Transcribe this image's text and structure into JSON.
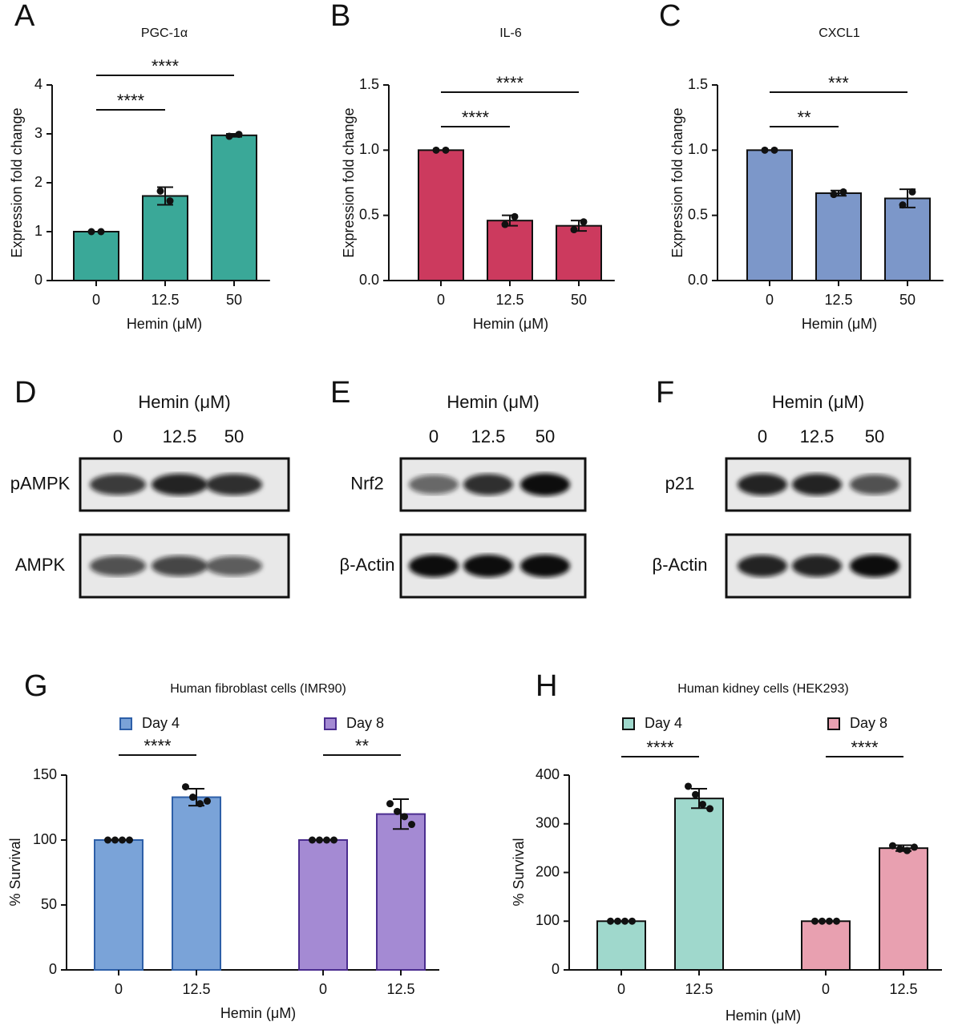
{
  "chart_data": [
    {
      "type": "bar",
      "panel": "A",
      "title": "PGC-1α",
      "ylabel": "Expression fold change",
      "xlabel": "Hemin (μM)",
      "categories": [
        "0",
        "12.5",
        "50"
      ],
      "values": [
        1,
        1.73,
        2.97
      ],
      "errors": [
        0,
        0.18,
        0.03
      ],
      "points": [
        [
          1,
          1
        ],
        [
          1.83,
          1.63
        ],
        [
          2.95,
          2.99
        ]
      ],
      "color": "#3aa898",
      "edgecolor": "#111111",
      "ylim": [
        0,
        4
      ],
      "yticks": [
        0,
        1,
        2,
        3,
        4
      ],
      "comparisons": [
        {
          "groups": [
            "0",
            "12.5"
          ],
          "label": "****"
        },
        {
          "groups": [
            "0",
            "50"
          ],
          "label": "****"
        }
      ]
    },
    {
      "type": "bar",
      "panel": "B",
      "title": "IL-6",
      "ylabel": "Expression fold change",
      "xlabel": "Hemin (μM)",
      "categories": [
        "0",
        "12.5",
        "50"
      ],
      "values": [
        1,
        0.46,
        0.42
      ],
      "errors": [
        0,
        0.04,
        0.04
      ],
      "points": [
        [
          1,
          1
        ],
        [
          0.43,
          0.49
        ],
        [
          0.39,
          0.45
        ]
      ],
      "color": "#cc3a5e",
      "edgecolor": "#111111",
      "ylim": [
        0,
        1.5
      ],
      "yticks": [
        {
          "value": 0,
          "label": "0.0"
        },
        0.5,
        {
          "value": 1,
          "label": "1.0"
        },
        1.5
      ],
      "comparisons": [
        {
          "groups": [
            "0",
            "12.5"
          ],
          "label": "****"
        },
        {
          "groups": [
            "0",
            "50"
          ],
          "label": "****"
        }
      ]
    },
    {
      "type": "bar",
      "panel": "C",
      "title": "CXCL1",
      "ylabel": "Expression fold change",
      "xlabel": "Hemin (μM)",
      "categories": [
        "0",
        "12.5",
        "50"
      ],
      "values": [
        1,
        0.67,
        0.63
      ],
      "errors": [
        0,
        0.02,
        0.07
      ],
      "points": [
        [
          1,
          1
        ],
        [
          0.66,
          0.68
        ],
        [
          0.58,
          0.68
        ]
      ],
      "color": "#7c97c9",
      "edgecolor": "#111111",
      "ylim": [
        0,
        1.5
      ],
      "yticks": [
        {
          "value": 0,
          "label": "0.0"
        },
        0.5,
        {
          "value": 1,
          "label": "1.0"
        },
        1.5
      ],
      "comparisons": [
        {
          "groups": [
            "0",
            "12.5"
          ],
          "label": "**"
        },
        {
          "groups": [
            "0",
            "50"
          ],
          "label": "***"
        }
      ]
    },
    {
      "type": "grouped-bar",
      "panel": "G",
      "title": "Human fibroblast cells (IMR90)",
      "ylabel": "% Survival",
      "xlabel": "Hemin (μM)",
      "categories": [
        "0",
        "12.5"
      ],
      "ylim": [
        0,
        150
      ],
      "yticks": [
        0,
        50,
        100,
        150
      ],
      "series": [
        {
          "name": "Day 4",
          "color": "#7aa3d8",
          "edgecolor": "#2d5fa8",
          "values": [
            100,
            133
          ],
          "errors": [
            0,
            6.5
          ],
          "points": [
            [
              100,
              100,
              100,
              100
            ],
            [
              141,
              133,
              128,
              130
            ]
          ],
          "comparison": "****"
        },
        {
          "name": "Day 8",
          "color": "#a48ad3",
          "edgecolor": "#4b2d8f",
          "values": [
            100,
            120
          ],
          "errors": [
            0,
            11.5
          ],
          "points": [
            [
              100,
              100,
              100,
              100
            ],
            [
              128,
              122,
              118,
              112
            ]
          ],
          "comparison": "**"
        }
      ]
    },
    {
      "type": "grouped-bar",
      "panel": "H",
      "title": "Human kidney cells (HEK293)",
      "ylabel": "% Survival",
      "xlabel": "Hemin (μM)",
      "categories": [
        "0",
        "12.5"
      ],
      "ylim": [
        0,
        400
      ],
      "yticks": [
        0,
        100,
        200,
        300,
        400
      ],
      "series": [
        {
          "name": "Day 4",
          "color": "#9fd8cc",
          "edgecolor": "#111111",
          "values": [
            100,
            352
          ],
          "errors": [
            0,
            20
          ],
          "points": [
            [
              100,
              100,
              100,
              100
            ],
            [
              377,
              360,
              340,
              331
            ]
          ],
          "comparison": "****"
        },
        {
          "name": "Day 8",
          "color": "#e8a0b0",
          "edgecolor": "#111111",
          "values": [
            100,
            250
          ],
          "errors": [
            0,
            6
          ],
          "points": [
            [
              100,
              100,
              100,
              100
            ],
            [
              255,
              248,
              245,
              252
            ]
          ],
          "comparison": "****"
        }
      ]
    }
  ],
  "blots": [
    {
      "panel": "D",
      "title": "Hemin (μM)",
      "lanes": [
        "0",
        "12.5",
        "50"
      ],
      "rows": [
        "pAMPK",
        "AMPK"
      ]
    },
    {
      "panel": "E",
      "title": "Hemin (μM)",
      "lanes": [
        "0",
        "12.5",
        "50"
      ],
      "rows": [
        "Nrf2",
        "β-Actin"
      ]
    },
    {
      "panel": "F",
      "title": "Hemin (μM)",
      "lanes": [
        "0",
        "12.5",
        "50"
      ],
      "rows": [
        "p21",
        "β-Actin"
      ]
    }
  ]
}
